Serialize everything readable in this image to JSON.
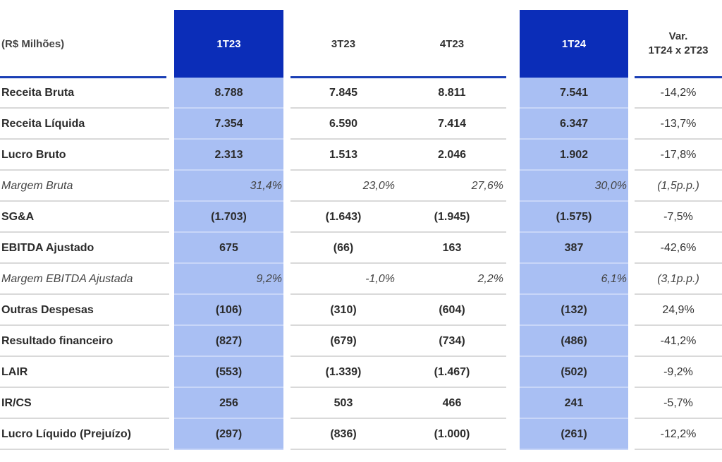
{
  "header": {
    "unit_label": "(R$ Milhões)",
    "columns": [
      "1T23",
      "3T23",
      "4T23",
      "1T24"
    ],
    "var_line1": "Var.",
    "var_line2": "1T24 x 2T23"
  },
  "colors": {
    "header_dark": "#0b2db8",
    "column_highlight": "#a9bff3",
    "rule": "#1a3fb5"
  },
  "rows": [
    {
      "label": "Receita Bruta",
      "v1": "8.788",
      "v2": "7.845",
      "v3": "8.811",
      "v4": "7.541",
      "var": "-14,2%"
    },
    {
      "label": "Receita Líquida",
      "v1": "7.354",
      "v2": "6.590",
      "v3": "7.414",
      "v4": "6.347",
      "var": "-13,7%"
    },
    {
      "label": "Lucro Bruto",
      "v1": "2.313",
      "v2": "1.513",
      "v3": "2.046",
      "v4": "1.902",
      "var": "-17,8%"
    },
    {
      "label": "Margem Bruta",
      "v1": "31,4%",
      "v2": "23,0%",
      "v3": "27,6%",
      "v4": "30,0%",
      "var": "(1,5p.p.)"
    },
    {
      "label": "SG&A",
      "v1": "(1.703)",
      "v2": "(1.643)",
      "v3": "(1.945)",
      "v4": "(1.575)",
      "var": "-7,5%"
    },
    {
      "label": "EBITDA Ajustado",
      "v1": "675",
      "v2": "(66)",
      "v3": "163",
      "v4": "387",
      "var": "-42,6%"
    },
    {
      "label": "Margem EBITDA Ajustada",
      "v1": "9,2%",
      "v2": "-1,0%",
      "v3": "2,2%",
      "v4": "6,1%",
      "var": "(3,1p.p.)"
    },
    {
      "label": "Outras Despesas",
      "v1": "(106)",
      "v2": "(310)",
      "v3": "(604)",
      "v4": "(132)",
      "var": "24,9%"
    },
    {
      "label": "Resultado financeiro",
      "v1": "(827)",
      "v2": "(679)",
      "v3": "(734)",
      "v4": "(486)",
      "var": "-41,2%"
    },
    {
      "label": "LAIR",
      "v1": "(553)",
      "v2": "(1.339)",
      "v3": "(1.467)",
      "v4": "(502)",
      "var": "-9,2%"
    },
    {
      "label": "IR/CS",
      "v1": "256",
      "v2": "503",
      "v3": "466",
      "v4": "241",
      "var": "-5,7%"
    },
    {
      "label": "Lucro Líquido (Prejuízo)",
      "v1": "(297)",
      "v2": "(836)",
      "v3": "(1.000)",
      "v4": "(261)",
      "var": "-12,2%"
    }
  ]
}
